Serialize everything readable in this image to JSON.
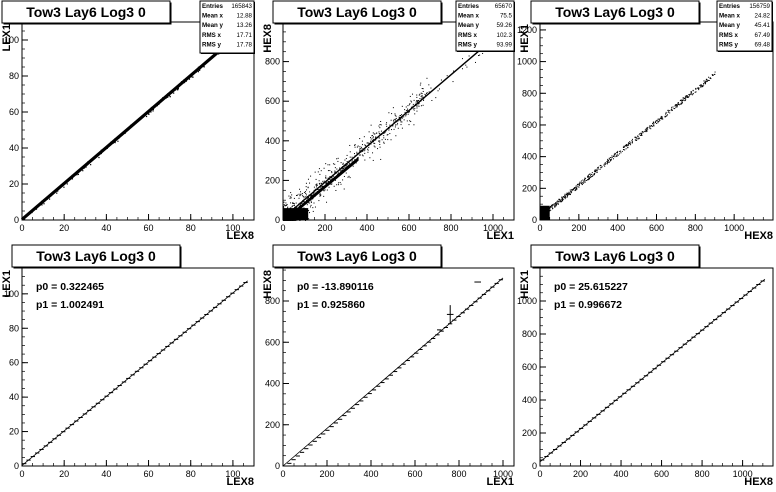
{
  "charts": [
    {
      "title": "Tow3 Lay6 Log3 0",
      "type": "scatter",
      "xlabel": "LEX8",
      "ylabel": "LEX1",
      "xlim": [
        0,
        110
      ],
      "ylim": [
        0,
        110
      ],
      "xticks": [
        0,
        20,
        40,
        60,
        80,
        100
      ],
      "yticks": [
        0,
        20,
        40,
        60,
        80,
        100
      ],
      "stats": [
        [
          "Entries",
          "165843"
        ],
        [
          "Mean x",
          "12.88"
        ],
        [
          "Mean y",
          "13.26"
        ],
        [
          "RMS x",
          "17.71"
        ],
        [
          "RMS y",
          "17.78"
        ]
      ],
      "series": [
        {
          "kind": "dense-line",
          "slope": 1.0,
          "intercept": 0.3,
          "x": [
            0,
            105
          ]
        }
      ]
    },
    {
      "title": "Tow3 Lay6 Log3 0",
      "type": "scatter",
      "xlabel": "LEX1",
      "ylabel": "HEX8",
      "xlim": [
        0,
        1100
      ],
      "ylim": [
        0,
        1000
      ],
      "xticks": [
        0,
        200,
        400,
        600,
        800,
        1000
      ],
      "yticks": [
        0,
        200,
        400,
        600,
        800
      ],
      "stats": [
        [
          "Entries",
          "65670"
        ],
        [
          "Mean x",
          "75.5"
        ],
        [
          "Mean y",
          "59.26"
        ],
        [
          "RMS x",
          "102.3"
        ],
        [
          "RMS y",
          "93.99"
        ]
      ],
      "series": [
        {
          "kind": "dense-line-scatter",
          "slope": 0.93,
          "intercept": -14,
          "x": [
            0,
            940
          ]
        }
      ]
    },
    {
      "title": "Tow3 Lay6 Log3 0",
      "type": "scatter",
      "xlabel": "HEX8",
      "ylabel": "HEX1",
      "xlim": [
        0,
        1200
      ],
      "ylim": [
        0,
        1250
      ],
      "xticks": [
        0,
        200,
        400,
        600,
        800,
        1000
      ],
      "yticks": [
        0,
        200,
        400,
        600,
        800,
        1000,
        1200
      ],
      "stats": [
        [
          "Entries",
          "156759"
        ],
        [
          "Mean x",
          "24.82"
        ],
        [
          "Mean y",
          "45.41"
        ],
        [
          "RMS x",
          "67.49"
        ],
        [
          "RMS y",
          "69.48"
        ]
      ],
      "series": [
        {
          "kind": "sparse-line",
          "slope": 1.0,
          "intercept": 25,
          "x": [
            0,
            900
          ]
        }
      ]
    },
    {
      "title": "Tow3 Lay6 Log3 0",
      "type": "profile",
      "xlabel": "LEX8",
      "ylabel": "LEX1",
      "xlim": [
        0,
        110
      ],
      "ylim": [
        0,
        115
      ],
      "xticks": [
        0,
        20,
        40,
        60,
        80,
        100
      ],
      "yticks": [
        0,
        20,
        40,
        60,
        80,
        100
      ],
      "fit": [
        "p0 = 0.322465",
        "p1 = 1.002491"
      ],
      "series": [
        {
          "kind": "profile",
          "slope": 1.002491,
          "intercept": 0.322465,
          "x": [
            0,
            107
          ]
        }
      ]
    },
    {
      "title": "Tow3 Lay6 Log3 0",
      "type": "profile",
      "xlabel": "LEX1",
      "ylabel": "HEX8",
      "xlim": [
        0,
        1050
      ],
      "ylim": [
        0,
        960
      ],
      "xticks": [
        0,
        200,
        400,
        600,
        800,
        1000
      ],
      "yticks": [
        0,
        200,
        400,
        600,
        800
      ],
      "fit": [
        "p0 = -13.890116",
        "p1 = 0.925860"
      ],
      "series": [
        {
          "kind": "profile",
          "slope": 0.92586,
          "intercept": -13.890116,
          "x": [
            0,
            1000
          ]
        }
      ]
    },
    {
      "title": "Tow3 Lay6 Log3 0",
      "type": "profile",
      "xlabel": "HEX8",
      "ylabel": "HEX1",
      "xlim": [
        0,
        1150
      ],
      "ylim": [
        0,
        1200
      ],
      "xticks": [
        0,
        200,
        400,
        600,
        800,
        1000
      ],
      "yticks": [
        0,
        200,
        400,
        600,
        800,
        1000
      ],
      "fit": [
        "p0 = 25.615227",
        "p1 = 0.996672"
      ],
      "series": [
        {
          "kind": "profile",
          "slope": 0.996672,
          "intercept": 25.615227,
          "x": [
            0,
            1110
          ]
        }
      ]
    }
  ]
}
